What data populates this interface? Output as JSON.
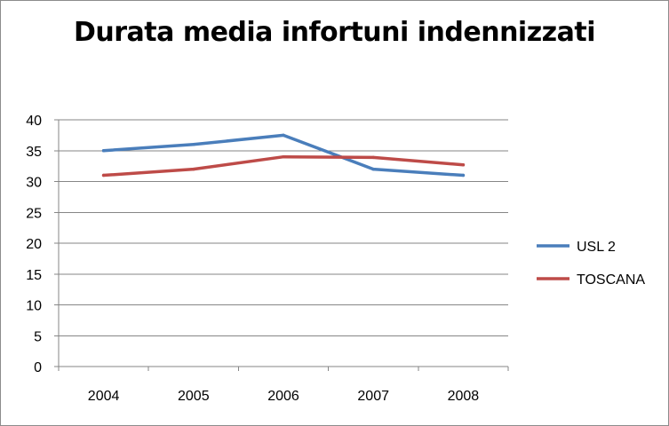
{
  "chart_data": {
    "type": "line",
    "title": "Durata media infortuni indennizzati",
    "categories": [
      "2004",
      "2005",
      "2006",
      "2007",
      "2008"
    ],
    "series": [
      {
        "name": "USL 2",
        "values": [
          35,
          36,
          37.5,
          32,
          31
        ],
        "color": "#4a7ebb"
      },
      {
        "name": "TOSCANA",
        "values": [
          31,
          32,
          34,
          33.9,
          32.7
        ],
        "color": "#be4b48"
      }
    ],
    "yticks": [
      "0",
      "5",
      "10",
      "15",
      "20",
      "25",
      "30",
      "35",
      "40"
    ],
    "ylim": [
      0,
      40
    ],
    "grid": "horizontal",
    "legend_position": "right"
  }
}
